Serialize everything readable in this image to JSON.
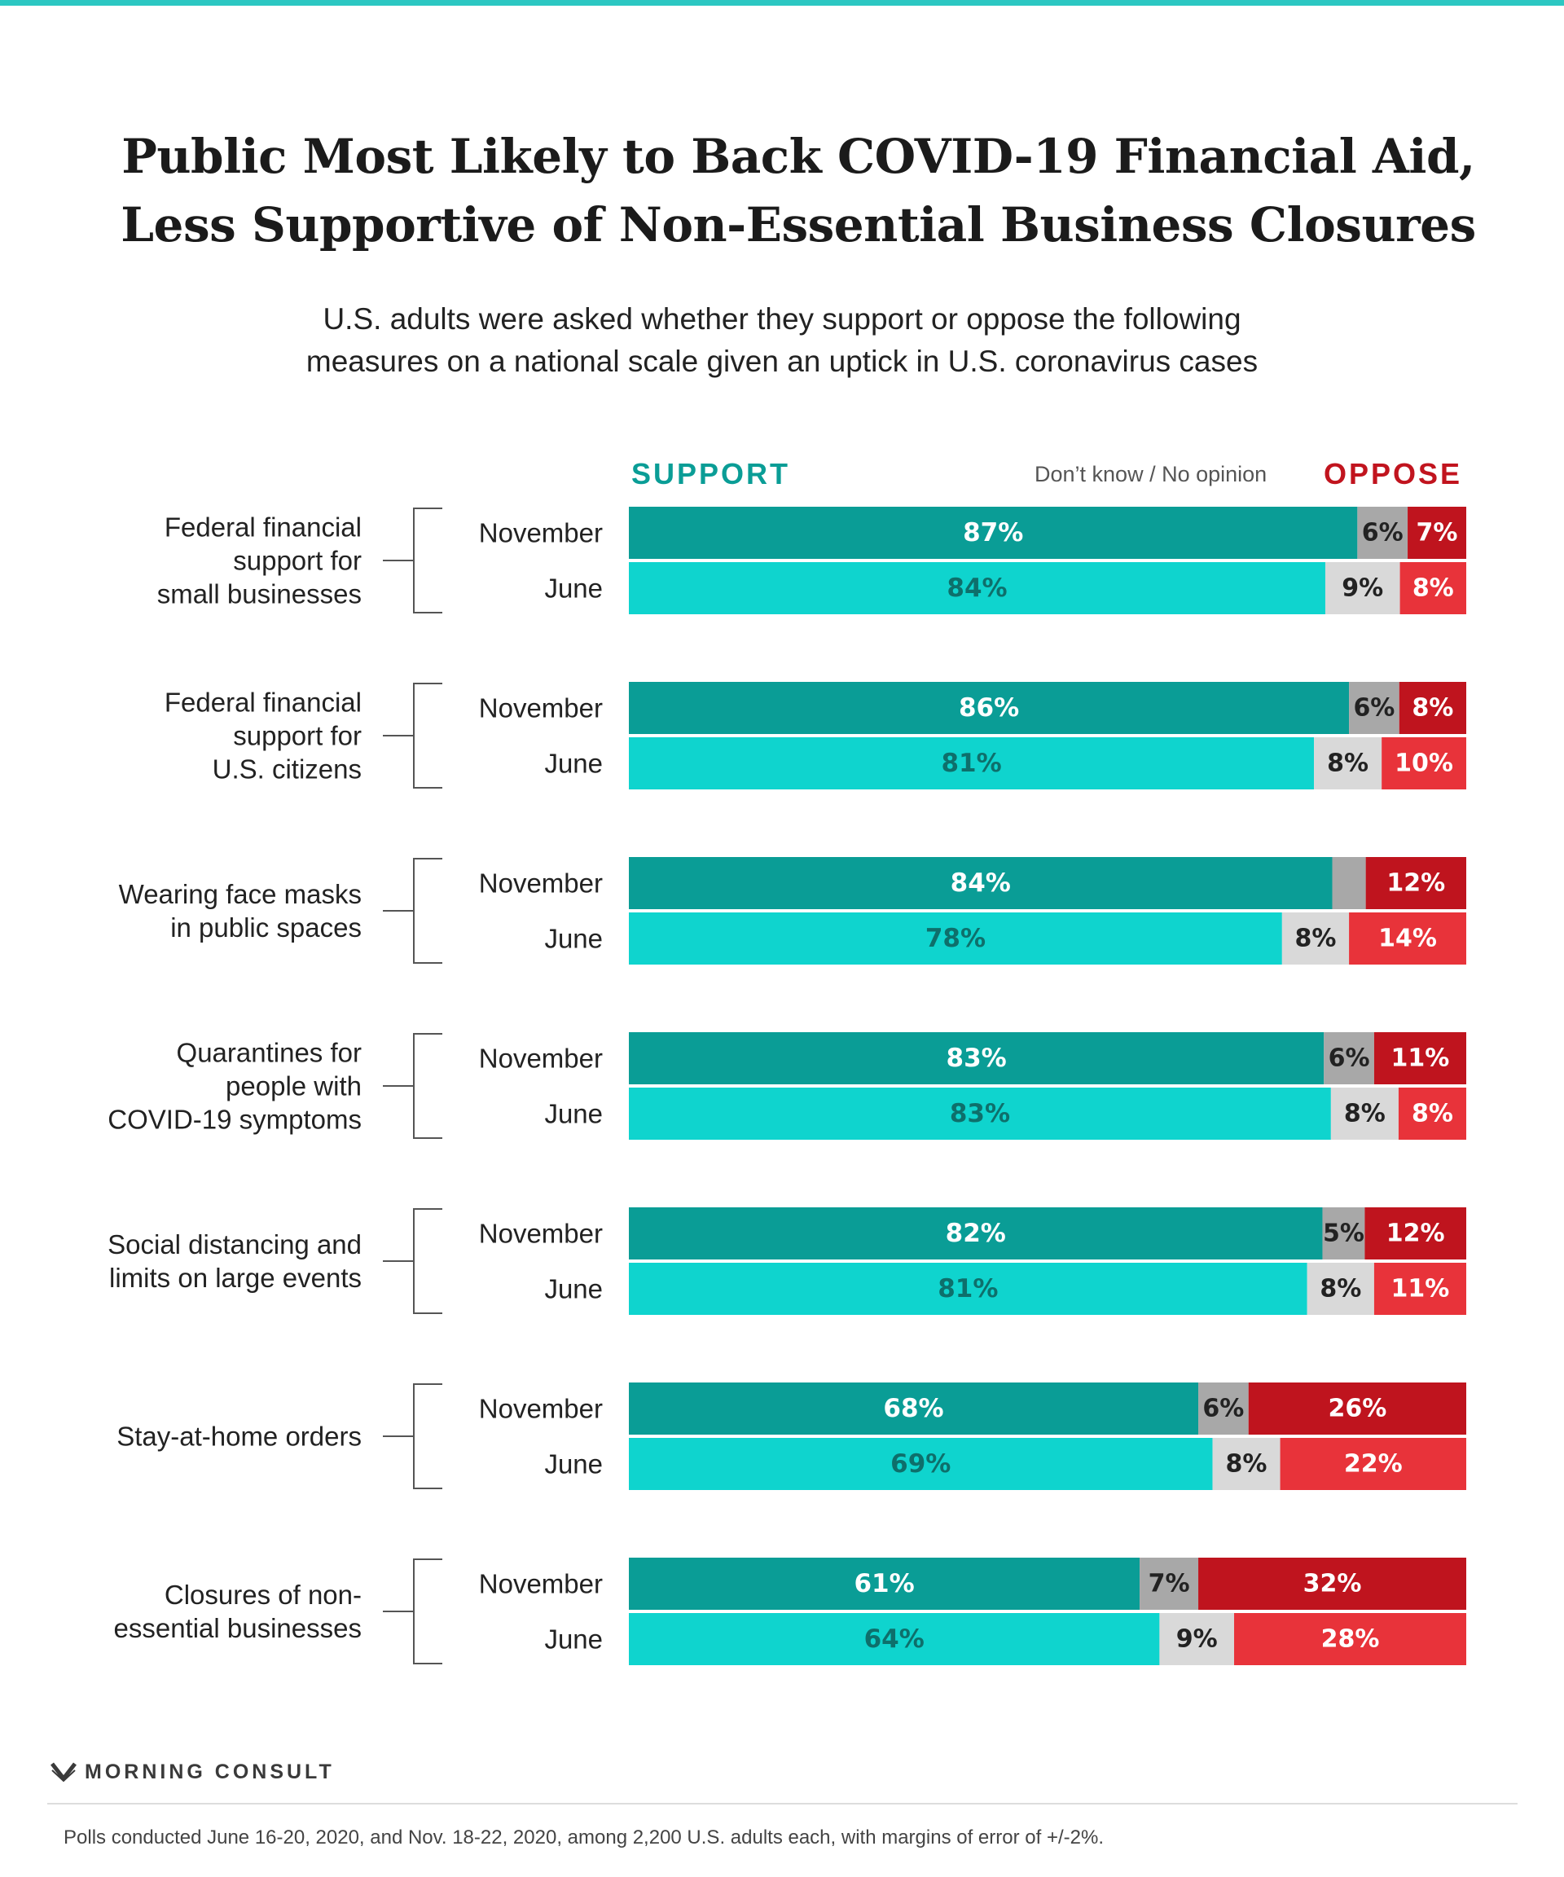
{
  "title": {
    "line1": "Public Most Likely to Back COVID-19 Financial Aid,",
    "line2": "Less Supportive of Non-Essential Business Closures"
  },
  "subtitle": {
    "line1": "U.S. adults were asked whether they support or oppose the following",
    "line2": "measures on a national scale given an uptick in U.S. coronavirus cases"
  },
  "legend": {
    "support": "SUPPORT",
    "dont_know": "Don’t know / No opinion",
    "oppose": "OPPOSE"
  },
  "colors": {
    "november_support": "#0a9d96",
    "june_support": "#0fd4ce",
    "november_dk": "#a8a8a8",
    "june_dk": "#d9d9d9",
    "november_oppose": "#bf141e",
    "june_oppose": "#e8333a"
  },
  "chart_data": {
    "type": "bar",
    "orientation": "horizontal",
    "stacked": true,
    "segments": [
      "SUPPORT",
      "Don’t know / No opinion",
      "OPPOSE"
    ],
    "periods": [
      "November",
      "June"
    ],
    "groups": [
      {
        "label": [
          "Federal financial",
          "support for",
          "small businesses"
        ],
        "rows": [
          {
            "period": "November",
            "support": 87,
            "dont_know": 6,
            "oppose": 7,
            "labels": {
              "support": "87%",
              "dont_know": "6%",
              "oppose": "7%"
            }
          },
          {
            "period": "June",
            "support": 84,
            "dont_know": 9,
            "oppose": 8,
            "labels": {
              "support": "84%",
              "dont_know": "9%",
              "oppose": "8%"
            }
          }
        ]
      },
      {
        "label": [
          "Federal financial",
          "support for",
          "U.S. citizens"
        ],
        "rows": [
          {
            "period": "November",
            "support": 86,
            "dont_know": 6,
            "oppose": 8,
            "labels": {
              "support": "86%",
              "dont_know": "6%",
              "oppose": "8%"
            }
          },
          {
            "period": "June",
            "support": 81,
            "dont_know": 8,
            "oppose": 10,
            "labels": {
              "support": "81%",
              "dont_know": "8%",
              "oppose": "10%"
            }
          }
        ]
      },
      {
        "label": [
          "Wearing face masks",
          "in public spaces"
        ],
        "rows": [
          {
            "period": "November",
            "support": 84,
            "dont_know": 4,
            "oppose": 12,
            "labels": {
              "support": "84%",
              "dont_know": "",
              "oppose": "12%"
            }
          },
          {
            "period": "June",
            "support": 78,
            "dont_know": 8,
            "oppose": 14,
            "labels": {
              "support": "78%",
              "dont_know": "8%",
              "oppose": "14%"
            }
          }
        ]
      },
      {
        "label": [
          "Quarantines for",
          "people with",
          "COVID-19 symptoms"
        ],
        "rows": [
          {
            "period": "November",
            "support": 83,
            "dont_know": 6,
            "oppose": 11,
            "labels": {
              "support": "83%",
              "dont_know": "6%",
              "oppose": "11%"
            }
          },
          {
            "period": "June",
            "support": 83,
            "dont_know": 8,
            "oppose": 8,
            "labels": {
              "support": "83%",
              "dont_know": "8%",
              "oppose": "8%"
            }
          }
        ]
      },
      {
        "label": [
          "Social distancing and",
          "limits on large events"
        ],
        "rows": [
          {
            "period": "November",
            "support": 82,
            "dont_know": 5,
            "oppose": 12,
            "labels": {
              "support": "82%",
              "dont_know": "5%",
              "oppose": "12%"
            }
          },
          {
            "period": "June",
            "support": 81,
            "dont_know": 8,
            "oppose": 11,
            "labels": {
              "support": "81%",
              "dont_know": "8%",
              "oppose": "11%"
            }
          }
        ]
      },
      {
        "label": [
          "Stay-at-home orders"
        ],
        "rows": [
          {
            "period": "November",
            "support": 68,
            "dont_know": 6,
            "oppose": 26,
            "labels": {
              "support": "68%",
              "dont_know": "6%",
              "oppose": "26%"
            }
          },
          {
            "period": "June",
            "support": 69,
            "dont_know": 8,
            "oppose": 22,
            "labels": {
              "support": "69%",
              "dont_know": "8%",
              "oppose": "22%"
            }
          }
        ]
      },
      {
        "label": [
          "Closures of non-",
          "essential businesses"
        ],
        "rows": [
          {
            "period": "November",
            "support": 61,
            "dont_know": 7,
            "oppose": 32,
            "labels": {
              "support": "61%",
              "dont_know": "7%",
              "oppose": "32%"
            }
          },
          {
            "period": "June",
            "support": 64,
            "dont_know": 9,
            "oppose": 28,
            "labels": {
              "support": "64%",
              "dont_know": "9%",
              "oppose": "28%"
            }
          }
        ]
      }
    ]
  },
  "footer": {
    "logo_icon": "morning-consult-logo-icon",
    "logo_text": "MORNING CONSULT",
    "source": "Polls conducted June 16-20, 2020, and Nov. 18-22, 2020, among 2,200 U.S. adults each, with margins of error of +/-2%."
  }
}
